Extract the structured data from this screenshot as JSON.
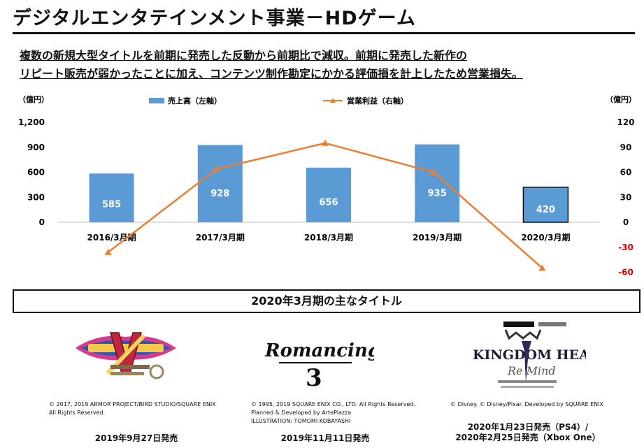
{
  "header": {
    "title": "デジタルエンタテインメント事業－HDゲーム",
    "summary_line1": "複数の新規大型タイトルを前期に発売した反動から前期比で減収。前期に発売した新作の",
    "summary_line2": "リピート販売が弱かったことに加え、コンテンツ制作勘定にかかる評価損を計上したため営業損失。"
  },
  "chart_data": {
    "type": "bar",
    "categories": [
      "2016/3月期",
      "2017/3月期",
      "2018/3月期",
      "2019/3月期",
      "2020/3月期"
    ],
    "series": [
      {
        "name": "売上高（左軸）",
        "type": "bar",
        "axis": "left",
        "values": [
          585,
          928,
          656,
          935,
          420
        ],
        "color": "#5b9bd5"
      },
      {
        "name": "営業利益（右軸）",
        "type": "line",
        "axis": "right",
        "values": [
          -36,
          64,
          95,
          60,
          -55
        ],
        "color": "#ed7d31"
      }
    ],
    "left_axis": {
      "unit": "（億円）",
      "ticks": [
        "1,200",
        "900",
        "600",
        "300",
        "0"
      ],
      "range": [
        0,
        1200
      ]
    },
    "right_axis": {
      "unit": "（億円）",
      "ticks": [
        "120",
        "90",
        "60",
        "30",
        "0",
        "-30",
        "-60"
      ],
      "range": [
        -60,
        120
      ],
      "negative_color": "#e00000"
    },
    "highlight_last_bar": true,
    "legend_position": "top"
  },
  "section": {
    "heading": "2020年3月期の主なタイトル"
  },
  "titles": [
    {
      "logo_icon": "dragon-quest-xi-s-logo",
      "credit_lines": [
        "© 2017, 2019 ARMOR PROJECT/BIRD STUDIO/SQUARE ENIX",
        "All Rights Reserved."
      ],
      "release_lines": [
        "2019年9月27日発売"
      ]
    },
    {
      "logo_icon": "romancing-saga-3-logo",
      "logo_text": "Romancing SaGa",
      "logo_numeral": "3",
      "credit_lines": [
        "© 1995, 2019 SQUARE ENIX CO., LTD. All Rights Reserved.",
        "Planned & Developed by ArtePiazza",
        "ILLUSTRATION: TOMOMI KOBAYASHI"
      ],
      "release_lines": [
        "2019年11月11日発売"
      ]
    },
    {
      "logo_icon": "kingdom-hearts-3-remind-logo",
      "logo_text": "KINGDOM HEARTS",
      "logo_subtext": "Re Mind",
      "credit_lines": [
        "© Disney. © Disney/Pixar.  Developed by SQUARE ENIX"
      ],
      "release_lines": [
        "2020年1月23日発売（PS4）/",
        "2020年2月25日発売（Xbox One）"
      ]
    }
  ]
}
